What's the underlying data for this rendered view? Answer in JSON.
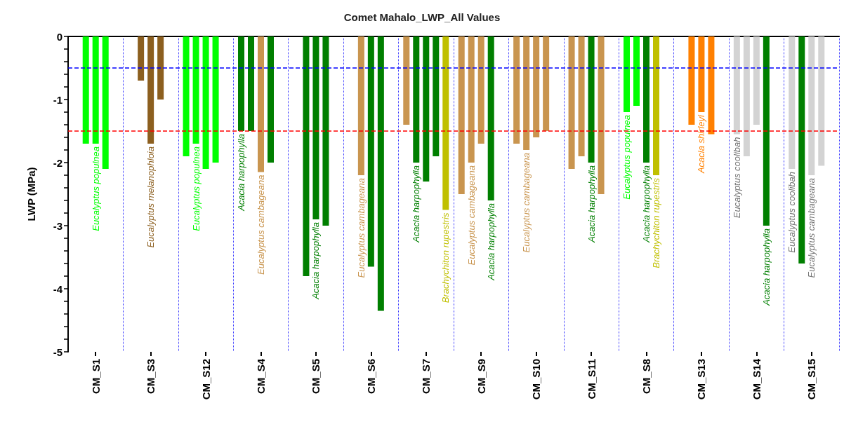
{
  "chart_data": {
    "type": "bar",
    "title": "Comet Mahalo_LWP_All Values",
    "ylabel": "LWP (MPa)",
    "categories": [
      "CM_S1",
      "CM_S3",
      "CM_S12",
      "CM_S4",
      "CM_S5",
      "CM_S6",
      "CM_S7",
      "CM_S9",
      "CM_S10",
      "CM_S11",
      "CM_S8",
      "CM_S13",
      "CM_S14",
      "CM_S15"
    ],
    "series": [
      {
        "values": [
          null,
          null,
          -1.9,
          -1.5,
          null,
          null,
          -1.4,
          -2.5,
          -1.7,
          -2.1,
          -1.2,
          null,
          -1.55,
          -2.1
        ],
        "colors": [
          null,
          null,
          "#00ff00",
          "#007f00",
          null,
          null,
          "#c9954f",
          "#c9954f",
          "#c9954f",
          "#c9954f",
          "#00ff00",
          null,
          "#d3d3d3",
          "#d3d3d3"
        ],
        "value_labels": [
          null,
          null,
          null,
          "Acacia harpophylla",
          null,
          null,
          null,
          null,
          null,
          null,
          "Eucalyptus populnea",
          null,
          "Eucalyptus coolibah",
          "Eucalyptus coolibah"
        ]
      },
      {
        "values": [
          -1.7,
          -0.7,
          -1.7,
          -1.5,
          -3.8,
          -2.2,
          -2.0,
          -2.0,
          -1.8,
          -1.9,
          -1.1,
          -1.4,
          -1.9,
          -3.6
        ],
        "colors": [
          "#00ff00",
          "#8c5f1f",
          "#00ff00",
          "#007f00",
          "#007f00",
          "#c9954f",
          "#007f00",
          "#c9954f",
          "#c9954f",
          "#c9954f",
          "#00ff00",
          "#ff8000",
          "#d3d3d3",
          "#007f00"
        ],
        "value_labels": [
          null,
          null,
          "Eucalyptus populnea",
          null,
          null,
          "Eucalyptus cambageana",
          "Acacia harpophylla",
          "Eucalyptus cambageana",
          "Eucalyptus cambageana",
          null,
          null,
          null,
          null,
          null
        ]
      },
      {
        "values": [
          -1.7,
          -1.7,
          -2.1,
          -2.15,
          -2.9,
          -3.65,
          -2.3,
          -1.7,
          -1.6,
          -2.0,
          -2.0,
          -1.2,
          -1.4,
          -2.2
        ],
        "colors": [
          "#00ff00",
          "#8c5f1f",
          "#00ff00",
          "#c9954f",
          "#007f00",
          "#007f00",
          "#007f00",
          "#c9954f",
          "#c9954f",
          "#007f00",
          "#007f00",
          "#ff8000",
          "#d3d3d3",
          "#d3d3d3"
        ],
        "value_labels": [
          "Eucalyptus populnea",
          "Eucalyptus melanophloia",
          null,
          "Eucalyptus cambageana",
          "Acacia harpophylla",
          null,
          null,
          null,
          null,
          "Acacia harpophylla",
          "Acacia harpophylla",
          "Acacia shirleyi",
          null,
          "Eucalyptus cambageana"
        ]
      },
      {
        "values": [
          -2.1,
          -1.0,
          -2.0,
          -2.0,
          -3.0,
          -4.35,
          -1.9,
          -2.6,
          -1.5,
          -2.5,
          -2.2,
          -1.55,
          -3.0,
          -2.05
        ],
        "colors": [
          "#00ff00",
          "#8c5f1f",
          "#00ff00",
          "#007f00",
          "#007f00",
          "#007f00",
          "#007f00",
          "#007f00",
          "#c9954f",
          "#c9954f",
          "#c0c000",
          "#ff8000",
          "#007f00",
          "#d3d3d3"
        ],
        "value_labels": [
          null,
          null,
          null,
          null,
          null,
          null,
          null,
          "Acacia harpophylla",
          null,
          null,
          "Brachychiton rupestris",
          null,
          "Acacia harpophylla",
          null
        ]
      },
      {
        "values": [
          null,
          null,
          null,
          null,
          null,
          null,
          -2.75,
          null,
          null,
          null,
          null,
          null,
          null,
          null
        ],
        "colors": [
          null,
          null,
          null,
          null,
          null,
          null,
          "#c0c000",
          null,
          null,
          null,
          null,
          null,
          null,
          null
        ],
        "value_labels": [
          null,
          null,
          null,
          null,
          null,
          null,
          "Brachychiton rupestris",
          null,
          null,
          null,
          null,
          null,
          null,
          null
        ]
      }
    ],
    "ylim": [
      -5,
      0
    ],
    "yticks": [
      -5,
      {
        "value": -4.8,
        "label": null
      },
      {
        "value": -4.6,
        "label": null
      },
      {
        "value": -4.4,
        "label": null
      },
      {
        "value": -4.2,
        "label": null
      },
      -4,
      {
        "value": -3.8,
        "label": null
      },
      {
        "value": -3.6,
        "label": null
      },
      {
        "value": -3.4,
        "label": null
      },
      {
        "value": -3.2,
        "label": null
      },
      -3,
      {
        "value": -2.8,
        "label": null
      },
      {
        "value": -2.6,
        "label": null
      },
      {
        "value": -2.4,
        "label": null
      },
      {
        "value": -2.2,
        "label": null
      },
      -2,
      {
        "value": -1.8,
        "label": null
      },
      {
        "value": -1.6,
        "label": null
      },
      {
        "value": -1.4,
        "label": null
      },
      {
        "value": -1.2,
        "label": null
      },
      -1,
      {
        "value": -0.8,
        "label": null
      },
      {
        "value": -0.6,
        "label": null
      },
      {
        "value": -0.4,
        "label": null
      },
      {
        "value": -0.2,
        "label": null
      },
      0
    ],
    "ref_lines": [
      {
        "axis": "y",
        "value": -0.5,
        "color": "#0000ff",
        "line_style": "dashed"
      },
      {
        "axis": "y",
        "value": -1.5,
        "color": "#ff0000",
        "line_style": "dashed"
      }
    ],
    "grid": "x"
  }
}
